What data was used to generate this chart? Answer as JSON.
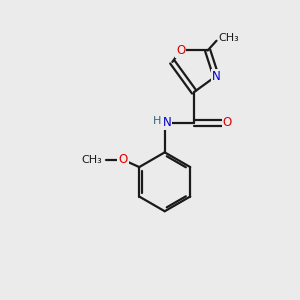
{
  "background_color": "#ebebeb",
  "bond_color": "#1a1a1a",
  "atom_colors": {
    "O": "#e00000",
    "N": "#0000cc",
    "H": "#336677",
    "C": "#1a1a1a"
  },
  "figsize": [
    3.0,
    3.0
  ],
  "dpi": 100,
  "lw": 1.6,
  "fs": 8.5
}
